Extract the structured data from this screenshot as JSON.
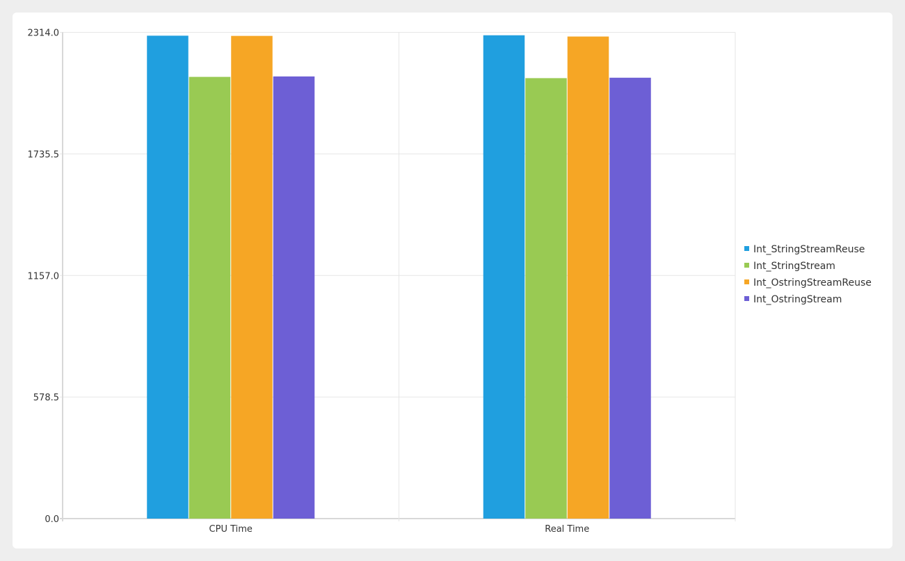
{
  "chart_data": {
    "type": "bar",
    "title": "",
    "xlabel": "",
    "ylabel": "",
    "categories": [
      "CPU Time",
      "Real Time"
    ],
    "series": [
      {
        "name": "Int_StringStreamReuse",
        "color": "#209fdf",
        "values": [
          2298,
          2300
        ]
      },
      {
        "name": "Int_StringStream",
        "color": "#99ca53",
        "values": [
          2102,
          2096
        ]
      },
      {
        "name": "Int_OstringStreamReuse",
        "color": "#f6a625",
        "values": [
          2297,
          2294
        ]
      },
      {
        "name": "Int_OstringStream",
        "color": "#6d5fd5",
        "values": [
          2104,
          2098
        ]
      }
    ],
    "ylim": [
      0,
      2314
    ],
    "yticks": [
      "0.0",
      "578.5",
      "1157.0",
      "1735.5",
      "2314.0"
    ],
    "grid": true,
    "legend_position": "right"
  }
}
